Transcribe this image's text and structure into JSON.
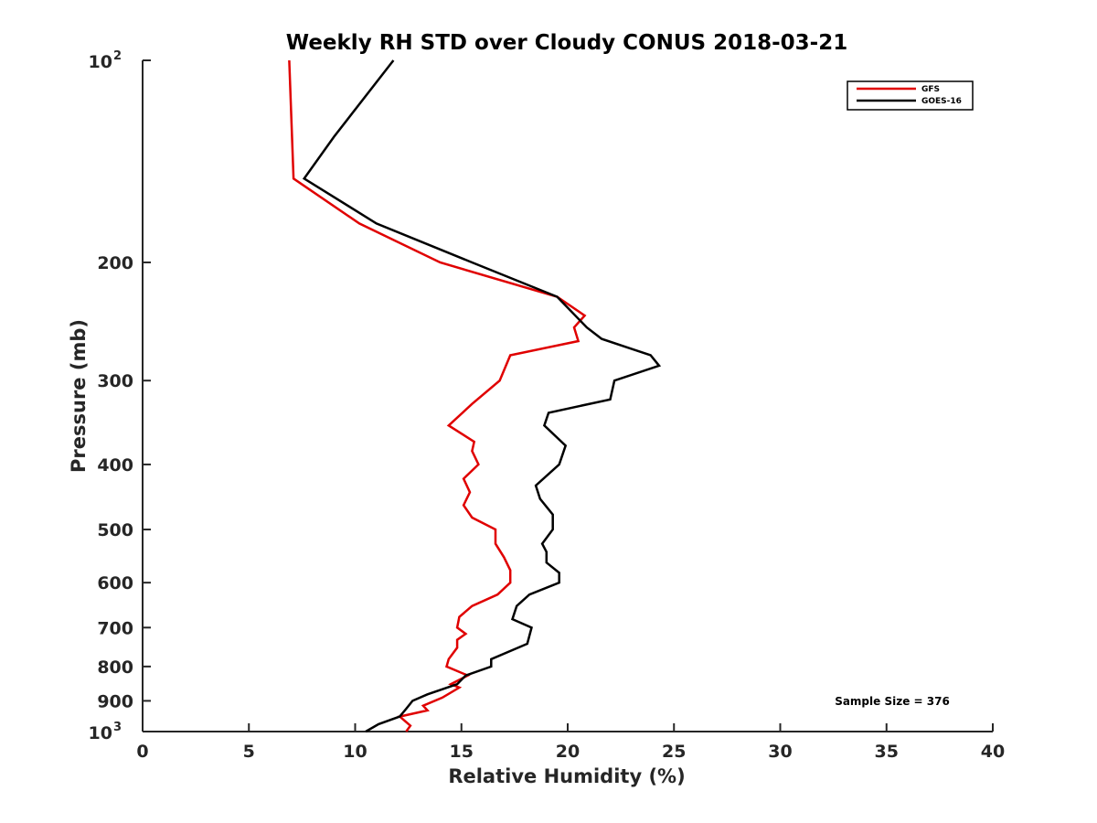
{
  "chart_data": {
    "type": "line",
    "title": "Weekly RH STD over Cloudy CONUS 2018-03-21",
    "xlabel": "Relative Humidity (%)",
    "ylabel": "Pressure (mb)",
    "xlim": [
      0,
      40
    ],
    "ylim": [
      1000,
      100
    ],
    "y_scale": "log",
    "grid": false,
    "legend_position": "top-right",
    "x_ticks": [
      "0",
      "5",
      "10",
      "15",
      "20",
      "25",
      "30",
      "35",
      "40"
    ],
    "y_ticks": [
      {
        "value": 100,
        "base": "10",
        "exp": "2"
      },
      {
        "value": 200,
        "label": "200"
      },
      {
        "value": 300,
        "label": "300"
      },
      {
        "value": 400,
        "label": "400"
      },
      {
        "value": 500,
        "label": "500"
      },
      {
        "value": 600,
        "label": "600"
      },
      {
        "value": 700,
        "label": "700"
      },
      {
        "value": 800,
        "label": "800"
      },
      {
        "value": 900,
        "label": "900"
      },
      {
        "value": 1000,
        "base": "10",
        "exp": "3"
      }
    ],
    "annotation": "Sample Size = 376",
    "series": [
      {
        "name": "GFS",
        "color": "#e00000",
        "points": [
          [
            6.9,
            100
          ],
          [
            7.1,
            150
          ],
          [
            10.2,
            175
          ],
          [
            14.0,
            200
          ],
          [
            19.5,
            225
          ],
          [
            20.8,
            240
          ],
          [
            20.3,
            250
          ],
          [
            20.5,
            262
          ],
          [
            17.3,
            275
          ],
          [
            16.8,
            300
          ],
          [
            15.5,
            325
          ],
          [
            14.4,
            350
          ],
          [
            15.6,
            370
          ],
          [
            15.5,
            382
          ],
          [
            15.8,
            400
          ],
          [
            15.1,
            420
          ],
          [
            15.4,
            440
          ],
          [
            15.1,
            460
          ],
          [
            15.5,
            480
          ],
          [
            16.6,
            500
          ],
          [
            16.6,
            525
          ],
          [
            17.0,
            550
          ],
          [
            17.3,
            575
          ],
          [
            17.3,
            600
          ],
          [
            16.7,
            625
          ],
          [
            15.5,
            650
          ],
          [
            14.9,
            675
          ],
          [
            14.8,
            700
          ],
          [
            15.2,
            715
          ],
          [
            14.8,
            730
          ],
          [
            14.8,
            750
          ],
          [
            14.4,
            780
          ],
          [
            14.3,
            800
          ],
          [
            15.3,
            825
          ],
          [
            14.5,
            850
          ],
          [
            14.9,
            860
          ],
          [
            14.1,
            890
          ],
          [
            13.2,
            915
          ],
          [
            13.4,
            930
          ],
          [
            12.1,
            950
          ],
          [
            12.6,
            980
          ],
          [
            12.4,
            1000
          ]
        ]
      },
      {
        "name": "GOES-16",
        "color": "#000000",
        "points": [
          [
            11.8,
            100
          ],
          [
            9.0,
            130
          ],
          [
            7.6,
            150
          ],
          [
            11.0,
            175
          ],
          [
            15.5,
            200
          ],
          [
            19.5,
            225
          ],
          [
            20.9,
            250
          ],
          [
            21.6,
            260
          ],
          [
            23.9,
            275
          ],
          [
            24.3,
            285
          ],
          [
            22.2,
            300
          ],
          [
            22.0,
            320
          ],
          [
            19.1,
            335
          ],
          [
            18.9,
            350
          ],
          [
            19.9,
            375
          ],
          [
            19.6,
            400
          ],
          [
            18.5,
            430
          ],
          [
            18.7,
            450
          ],
          [
            19.3,
            475
          ],
          [
            19.3,
            500
          ],
          [
            18.8,
            525
          ],
          [
            19.0,
            540
          ],
          [
            19.0,
            560
          ],
          [
            19.6,
            580
          ],
          [
            19.6,
            600
          ],
          [
            18.2,
            625
          ],
          [
            17.6,
            650
          ],
          [
            17.4,
            680
          ],
          [
            18.3,
            700
          ],
          [
            18.2,
            720
          ],
          [
            18.1,
            740
          ],
          [
            16.4,
            780
          ],
          [
            16.4,
            800
          ],
          [
            15.2,
            825
          ],
          [
            14.8,
            850
          ],
          [
            13.4,
            880
          ],
          [
            12.7,
            900
          ],
          [
            12.4,
            925
          ],
          [
            12.1,
            950
          ],
          [
            11.1,
            975
          ],
          [
            10.5,
            1000
          ]
        ]
      }
    ]
  }
}
